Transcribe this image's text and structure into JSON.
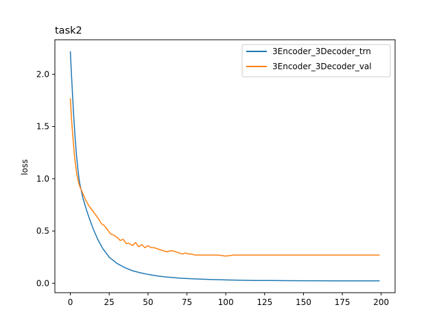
{
  "chart_data": {
    "type": "line",
    "title": "task2",
    "xlabel": "",
    "ylabel": "loss",
    "xlim": [
      -9.95,
      208.95
    ],
    "ylim": [
      -0.09,
      2.33
    ],
    "xticks": [
      0,
      25,
      50,
      75,
      100,
      125,
      150,
      175,
      200
    ],
    "yticks": [
      0.0,
      0.5,
      1.0,
      1.5,
      2.0
    ],
    "ytick_labels": [
      "0.0",
      "0.5",
      "1.0",
      "1.5",
      "2.0"
    ],
    "grid": false,
    "legend_position": "upper right",
    "series": [
      {
        "name": "3Encoder_3Decoder_trn",
        "color": "#1f77b4",
        "x": [
          0,
          1,
          2,
          3,
          4,
          5,
          6,
          8,
          10,
          12,
          15,
          18,
          21,
          25,
          30,
          35,
          40,
          45,
          50,
          55,
          60,
          65,
          70,
          75,
          80,
          90,
          100,
          110,
          120,
          130,
          140,
          150,
          160,
          170,
          180,
          190,
          199
        ],
        "y": [
          2.22,
          1.92,
          1.64,
          1.41,
          1.22,
          1.07,
          0.96,
          0.82,
          0.72,
          0.63,
          0.51,
          0.41,
          0.33,
          0.25,
          0.19,
          0.15,
          0.12,
          0.1,
          0.085,
          0.072,
          0.063,
          0.056,
          0.05,
          0.045,
          0.042,
          0.036,
          0.032,
          0.029,
          0.027,
          0.026,
          0.025,
          0.024,
          0.024,
          0.023,
          0.023,
          0.023,
          0.023
        ]
      },
      {
        "name": "3Encoder_3Decoder_val",
        "color": "#ff7f0e",
        "x": [
          0,
          1,
          2,
          3,
          4,
          5,
          6,
          8,
          10,
          12,
          14,
          16,
          18,
          20,
          22,
          24,
          26,
          28,
          30,
          32,
          34,
          36,
          38,
          40,
          42,
          44,
          46,
          48,
          50,
          52,
          54,
          56,
          58,
          60,
          62,
          64,
          66,
          68,
          70,
          72,
          74,
          76,
          78,
          80,
          85,
          90,
          95,
          100,
          105,
          110,
          115,
          120,
          125,
          130,
          135,
          140,
          145,
          150,
          160,
          170,
          180,
          190,
          199
        ],
        "y": [
          1.77,
          1.52,
          1.33,
          1.18,
          1.06,
          0.98,
          0.93,
          0.86,
          0.79,
          0.74,
          0.7,
          0.66,
          0.62,
          0.57,
          0.55,
          0.51,
          0.47,
          0.46,
          0.44,
          0.41,
          0.42,
          0.38,
          0.38,
          0.36,
          0.39,
          0.35,
          0.37,
          0.34,
          0.36,
          0.34,
          0.34,
          0.33,
          0.32,
          0.31,
          0.3,
          0.31,
          0.31,
          0.3,
          0.29,
          0.28,
          0.29,
          0.28,
          0.28,
          0.27,
          0.27,
          0.27,
          0.27,
          0.26,
          0.27,
          0.27,
          0.27,
          0.27,
          0.27,
          0.27,
          0.27,
          0.27,
          0.27,
          0.27,
          0.27,
          0.27,
          0.27,
          0.27,
          0.27
        ]
      }
    ]
  }
}
